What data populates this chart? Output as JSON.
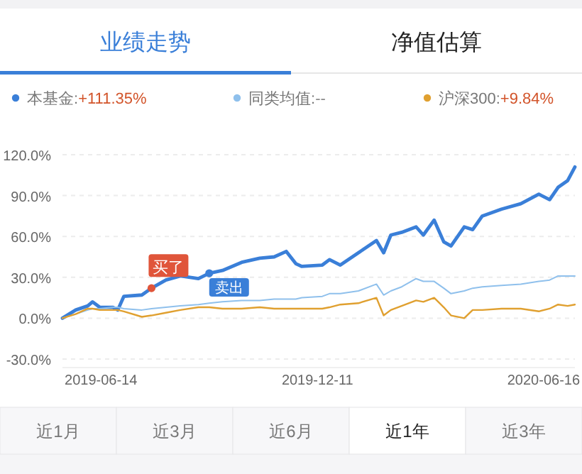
{
  "chart_data": {
    "type": "line",
    "legend": "top",
    "grid": "y",
    "marker": "none",
    "line_style": "solid",
    "x": [
      "2019-05-13",
      "2019-05-24",
      "2019-06-03",
      "2019-06-07",
      "2019-06-13",
      "2019-06-24",
      "2019-06-28",
      "2019-07-03",
      "2019-07-18",
      "2019-07-26",
      "2019-08-07",
      "2019-08-19",
      "2019-09-03",
      "2019-09-12",
      "2019-09-23",
      "2019-10-09",
      "2019-10-24",
      "2019-11-05",
      "2019-11-15",
      "2019-11-23",
      "2019-11-28",
      "2019-12-15",
      "2019-12-21",
      "2019-12-30",
      "2020-01-14",
      "2020-01-29",
      "2020-02-04",
      "2020-02-10",
      "2020-02-19",
      "2020-03-02",
      "2020-03-08",
      "2020-03-17",
      "2020-03-25",
      "2020-03-31",
      "2020-04-11",
      "2020-04-18",
      "2020-04-26",
      "2020-05-12",
      "2020-05-28",
      "2020-06-12",
      "2020-06-21",
      "2020-06-28",
      "2020-07-06",
      "2020-07-12"
    ],
    "series": [
      {
        "name": "本基金:+111.35%",
        "color": "#3a7fd8",
        "values": [
          0,
          6,
          9,
          12,
          8,
          8,
          6,
          16,
          17,
          22,
          28,
          31,
          29,
          33,
          35,
          41,
          44,
          45,
          49,
          40,
          38,
          39,
          43,
          39,
          48,
          57,
          48,
          61,
          63,
          67,
          61,
          72,
          56,
          53,
          67,
          65,
          75,
          80,
          84,
          91,
          87,
          96,
          101,
          111
        ]
      },
      {
        "name": "同类均值:--",
        "color": "#8fc0ec",
        "values": [
          0,
          3,
          6,
          7,
          7,
          8,
          8,
          7,
          6,
          7,
          8,
          9,
          10,
          11,
          12,
          13,
          13,
          14,
          14,
          14,
          15,
          16,
          18,
          18,
          20,
          25,
          17,
          20,
          23,
          29,
          27,
          27,
          22,
          18,
          20,
          22,
          23,
          24,
          25,
          27,
          28,
          31,
          31,
          31
        ]
      },
      {
        "name": "沪深300:+9.84%",
        "color": "#e0a030",
        "values": [
          0,
          3,
          7,
          7,
          6,
          6,
          6,
          5,
          1,
          2,
          4,
          6,
          8,
          8,
          7,
          7,
          8,
          7,
          7,
          7,
          7,
          7,
          8,
          10,
          11,
          15,
          2,
          6,
          9,
          13,
          12,
          15,
          8,
          2,
          0,
          6,
          6,
          7,
          7,
          5,
          7,
          10,
          9,
          10
        ]
      }
    ],
    "xlim": [
      "2019-05-13",
      "2020-07-12"
    ],
    "xticks": [
      "2019-06-14",
      "2019-12-11",
      "2020-06-16"
    ],
    "ylim": [
      -30,
      120
    ],
    "yticks": [
      {
        "value": -30,
        "label": "-30.0%"
      },
      {
        "value": 0,
        "label": "0.0%"
      },
      {
        "value": 30,
        "label": "30.0%"
      },
      {
        "value": 60,
        "label": "60.0%"
      },
      {
        "value": 90,
        "label": "90.0%"
      },
      {
        "value": 120,
        "label": "120.0%"
      }
    ],
    "annotations": [
      "业绩走势",
      "净值估算",
      "近1月",
      "近3月",
      "近6月",
      "近1年",
      "近3年",
      {
        "text": "买了",
        "x": "2019-07-26",
        "y": 22
      },
      {
        "text": "卖出",
        "x": "2019-09-12",
        "y": 33
      }
    ]
  }
}
